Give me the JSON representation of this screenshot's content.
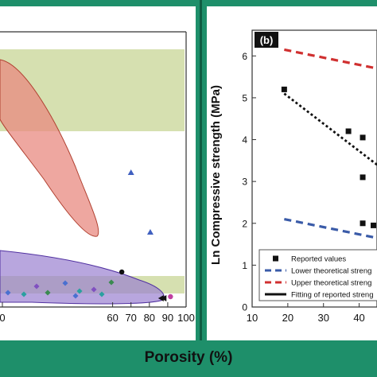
{
  "porosity_label": "Porosity (%)",
  "colors": {
    "frame": "#1e8f6a",
    "band_fill": "#d6e0b0",
    "red_region": "#e88a80",
    "purple_region": "#9a80d0",
    "lower_line": "#3a5ba8",
    "upper_line": "#d03030",
    "fit_line": "#111111"
  },
  "chart_data": [
    {
      "type": "scatter",
      "panel": "left",
      "xlim": [
        0,
        100
      ],
      "x_ticks": [
        "0",
        "60",
        "70",
        "80",
        "90",
        "100"
      ],
      "regions": [
        {
          "name": "red",
          "color": "#e88a80"
        },
        {
          "name": "purple",
          "color": "#9a80d0"
        }
      ],
      "points": [
        {
          "x": 70,
          "y": "triangle",
          "color": "#4060c0"
        },
        {
          "x": 80.5,
          "y": "triangle",
          "color": "#4060c0"
        },
        {
          "x": 65,
          "y": "circle",
          "color": "#111111"
        },
        {
          "x": 86.5,
          "y": "left-triangle",
          "color": "#111111"
        },
        {
          "x": 88,
          "y": "left-triangle",
          "color": "#111111"
        },
        {
          "x": 91.5,
          "y": "circle",
          "color": "#c040a0"
        }
      ]
    },
    {
      "type": "line",
      "panel": "right",
      "panel_label": "(b)",
      "ylabel": "Ln Compressive strength (MPa)",
      "xlim": [
        10,
        45
      ],
      "ylim": [
        0,
        6.5
      ],
      "x_ticks": [
        10,
        20,
        30,
        40
      ],
      "y_ticks": [
        0,
        1,
        2,
        3,
        4,
        5,
        6
      ],
      "series": [
        {
          "name": "Reported values",
          "kind": "scatter",
          "color": "#111111",
          "x": [
            19,
            37,
            41,
            41,
            41,
            44
          ],
          "y": [
            5.2,
            4.2,
            4.05,
            3.1,
            2.0,
            1.95
          ]
        },
        {
          "name": "Lower theoretical strength",
          "kind": "dashed",
          "color": "#3a5ba8",
          "x": [
            19,
            45
          ],
          "y": [
            2.1,
            1.65
          ]
        },
        {
          "name": "Upper theoretical strength",
          "kind": "dashed",
          "color": "#d03030",
          "x": [
            19,
            45
          ],
          "y": [
            6.15,
            5.7
          ]
        },
        {
          "name": "Fitting of reported strength",
          "kind": "dotted",
          "color": "#111111",
          "x": [
            19,
            45
          ],
          "y": [
            5.1,
            3.4
          ]
        }
      ],
      "legend": [
        "Reported values",
        "Lower theoretical streng",
        "Upper theoretical streng",
        "Fitting of reported streng"
      ],
      "legend_position": "bottom-right"
    }
  ]
}
